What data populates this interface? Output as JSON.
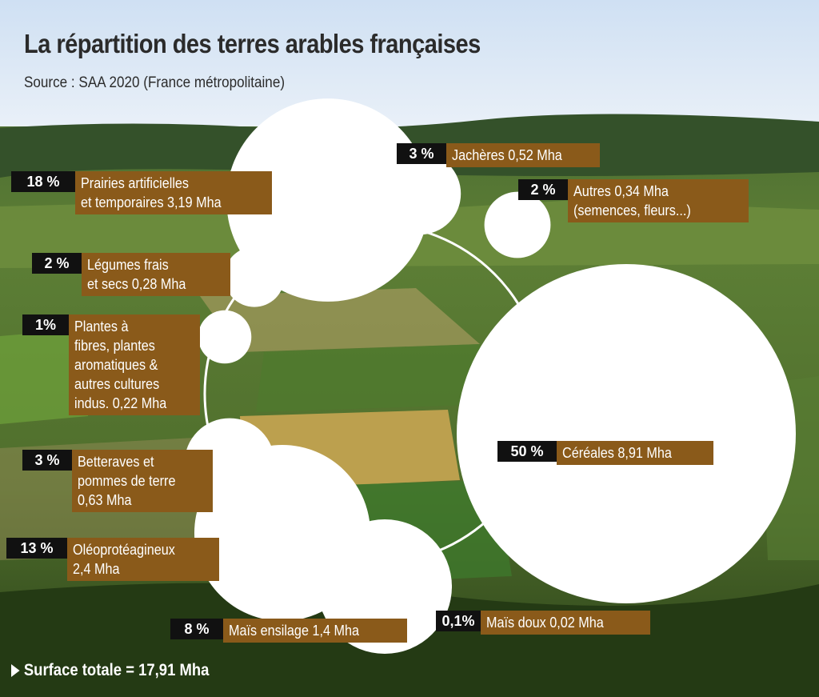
{
  "chart_data": {
    "type": "bubble",
    "title": "La répartition des terres arables françaises",
    "subtitle": "Source : SAA 2020 (France métropolitaine)",
    "total": "Surface totale = 17,91 Mha",
    "unit": "Mha",
    "series": [
      {
        "category": "Céréales",
        "percent": "50 %",
        "value": 8.91,
        "label_lines": [
          "Céréales 8,91 Mha"
        ]
      },
      {
        "category": "Maïs doux",
        "percent": "0,1%",
        "value": 0.02,
        "label_lines": [
          "Maïs doux 0,02 Mha"
        ]
      },
      {
        "category": "Maïs ensilage",
        "percent": "8 %",
        "value": 1.4,
        "label_lines": [
          "Maïs ensilage 1,4 Mha"
        ]
      },
      {
        "category": "Oléoprotéagineux",
        "percent": "13 %",
        "value": 2.4,
        "label_lines": [
          "Oléoprotéagineux",
          "2,4 Mha"
        ]
      },
      {
        "category": "Betteraves et pommes de terre",
        "percent": "3 %",
        "value": 0.63,
        "label_lines": [
          "Betteraves et",
          "pommes de terre",
          "0,63 Mha"
        ]
      },
      {
        "category": "Plantes à fibres, plantes aromatiques & autres cultures indus.",
        "percent": "1%",
        "value": 0.22,
        "label_lines": [
          "Plantes à",
          "fibres, plantes",
          "aromatiques &",
          "autres cultures",
          "indus. 0,22 Mha"
        ]
      },
      {
        "category": "Légumes frais et secs",
        "percent": "2 %",
        "value": 0.28,
        "label_lines": [
          "Légumes frais",
          "et secs 0,28 Mha"
        ]
      },
      {
        "category": "Prairies artificielles et temporaires",
        "percent": "18 %",
        "value": 3.19,
        "label_lines": [
          "Prairies artificielles",
          "et temporaires 3,19 Mha"
        ]
      },
      {
        "category": "Jachères",
        "percent": "3 %",
        "value": 0.52,
        "label_lines": [
          "Jachères 0,52 Mha"
        ]
      },
      {
        "category": "Autres (semences, fleurs...)",
        "percent": "2 %",
        "value": 0.34,
        "label_lines": [
          "Autres 0,34 Mha",
          "(semences, fleurs...)"
        ]
      }
    ]
  }
}
